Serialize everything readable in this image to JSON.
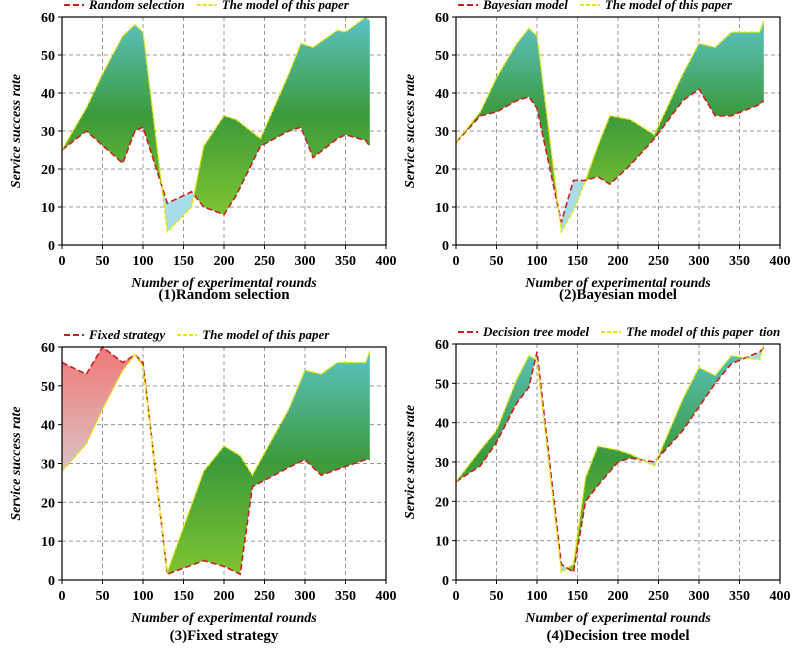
{
  "chart_data": [
    {
      "type": "area",
      "caption": "(1)Random selection",
      "xlabel": "Number of experimental rounds",
      "ylabel": "Service success rate",
      "xlim": [
        0,
        400
      ],
      "ylim": [
        0,
        60
      ],
      "xticks": [
        0,
        50,
        100,
        150,
        200,
        250,
        300,
        350,
        400
      ],
      "yticks": [
        0,
        10,
        20,
        30,
        40,
        50,
        60
      ],
      "grid": true,
      "legend_position": "top",
      "legend_suffix": "",
      "fill_colors": {
        "model_above": [
          "#5bc3c4",
          "#3b9a3a",
          "#7ec430"
        ],
        "model_below": "#a6dde8"
      },
      "series": [
        {
          "name": "Random selection",
          "color": "#cc1f1f",
          "style": "dashed",
          "x": [
            0,
            30,
            75,
            90,
            100,
            130,
            160,
            175,
            200,
            215,
            245,
            280,
            295,
            310,
            340,
            350,
            375,
            380
          ],
          "y": [
            25,
            30,
            21.5,
            30,
            31,
            11,
            14,
            10,
            8,
            13,
            26,
            30,
            31,
            23,
            28,
            29,
            27.5,
            26
          ]
        },
        {
          "name": "The model of this paper",
          "color": "#e5e500",
          "style": "dashed",
          "x": [
            0,
            30,
            50,
            75,
            90,
            100,
            130,
            160,
            175,
            200,
            215,
            245,
            280,
            295,
            310,
            340,
            350,
            375,
            380
          ],
          "y": [
            25,
            36,
            45,
            55,
            58,
            56,
            3.5,
            10,
            26,
            34,
            33,
            28,
            45,
            53,
            52,
            56.5,
            56,
            60,
            59
          ]
        }
      ]
    },
    {
      "type": "area",
      "caption": "(2)Bayesian model",
      "xlabel": "Number of experimental rounds",
      "ylabel": "Service success rate",
      "xlim": [
        0,
        400
      ],
      "ylim": [
        0,
        60
      ],
      "xticks": [
        0,
        50,
        100,
        150,
        200,
        250,
        300,
        350,
        400
      ],
      "yticks": [
        0,
        10,
        20,
        30,
        40,
        50,
        60
      ],
      "grid": true,
      "legend_position": "top",
      "legend_suffix": "",
      "fill_colors": {
        "model_above": [
          "#5bc3c4",
          "#3b9a3a",
          "#7ec430"
        ],
        "model_below": "#a6dde8"
      },
      "series": [
        {
          "name": "Bayesian model",
          "color": "#cc1f1f",
          "style": "dashed",
          "x": [
            0,
            30,
            50,
            75,
            90,
            100,
            130,
            145,
            160,
            175,
            190,
            215,
            245,
            280,
            300,
            320,
            340,
            375,
            380
          ],
          "y": [
            27,
            34,
            35,
            38,
            39,
            36,
            6,
            17,
            17,
            18,
            16,
            21,
            28,
            38,
            41,
            34,
            34,
            37,
            38
          ]
        },
        {
          "name": "The model of this paper",
          "color": "#e5e500",
          "style": "dashed",
          "x": [
            0,
            30,
            50,
            75,
            90,
            100,
            130,
            145,
            160,
            175,
            190,
            215,
            245,
            280,
            300,
            320,
            340,
            375,
            380
          ],
          "y": [
            27,
            35,
            44,
            53,
            57,
            55,
            3.5,
            9,
            17,
            26,
            34,
            33,
            29,
            45,
            53,
            52,
            56,
            56,
            59
          ]
        }
      ]
    },
    {
      "type": "area",
      "caption": "(3)Fixed strategy",
      "xlabel": "Number of experimental rounds",
      "ylabel": "Service success rate",
      "xlim": [
        0,
        400
      ],
      "ylim": [
        0,
        60
      ],
      "xticks": [
        0,
        50,
        100,
        150,
        200,
        250,
        300,
        350,
        400
      ],
      "yticks": [
        0,
        10,
        20,
        30,
        40,
        50,
        60
      ],
      "grid": true,
      "legend_position": "top",
      "legend_suffix": "",
      "fill_colors": {
        "model_above": [
          "#5bc3c4",
          "#3b9a3a",
          "#7ec430"
        ],
        "model_below": [
          "#f07878",
          "#d6d6d6"
        ]
      },
      "series": [
        {
          "name": "Fixed strategy",
          "color": "#cc1f1f",
          "style": "dashed",
          "x": [
            0,
            30,
            50,
            75,
            90,
            100,
            130,
            175,
            200,
            220,
            235,
            280,
            300,
            320,
            340,
            375,
            380
          ],
          "y": [
            56,
            53,
            60,
            56,
            58,
            56,
            1.5,
            5,
            3.5,
            1.5,
            24,
            29,
            31,
            27,
            28.5,
            31,
            31
          ]
        },
        {
          "name": "The model of this paper",
          "color": "#e5e500",
          "style": "dashed",
          "x": [
            0,
            30,
            50,
            75,
            90,
            100,
            130,
            175,
            200,
            220,
            235,
            280,
            300,
            320,
            340,
            375,
            380
          ],
          "y": [
            28,
            35,
            44,
            54,
            58,
            55,
            2,
            28,
            34.5,
            32,
            27,
            44,
            54,
            53,
            56,
            56,
            59
          ]
        }
      ]
    },
    {
      "type": "area",
      "caption": "(4)Decision tree model",
      "xlabel": "Number of experimental rounds",
      "ylabel": "Service success rate",
      "xlim": [
        0,
        400
      ],
      "ylim": [
        0,
        60
      ],
      "xticks": [
        0,
        50,
        100,
        150,
        200,
        250,
        300,
        350,
        400
      ],
      "yticks": [
        0,
        10,
        20,
        30,
        40,
        50,
        60
      ],
      "grid": true,
      "legend_position": "top",
      "legend_suffix": "tion",
      "fill_colors": {
        "model_above": [
          "#5bc3c4",
          "#3b9a3a",
          "#7ec430"
        ],
        "model_below": "#a6dde8"
      },
      "series": [
        {
          "name": "Decision tree model",
          "color": "#cc1f1f",
          "style": "dashed",
          "x": [
            0,
            30,
            50,
            75,
            90,
            100,
            130,
            145,
            160,
            175,
            200,
            215,
            245,
            280,
            300,
            320,
            340,
            375,
            380
          ],
          "y": [
            25,
            29,
            35,
            45,
            49,
            58,
            4,
            2,
            20,
            24,
            30,
            31,
            30,
            38,
            44,
            50,
            55,
            58,
            59
          ]
        },
        {
          "name": "The model of this paper",
          "color": "#e5e500",
          "style": "dashed",
          "x": [
            0,
            30,
            50,
            75,
            90,
            100,
            130,
            145,
            160,
            175,
            200,
            215,
            245,
            280,
            300,
            320,
            340,
            375,
            380
          ],
          "y": [
            25,
            33,
            38,
            51,
            57,
            56,
            2,
            4,
            26,
            34,
            33,
            32,
            29,
            46,
            54,
            52,
            57,
            56,
            60
          ]
        }
      ]
    }
  ]
}
